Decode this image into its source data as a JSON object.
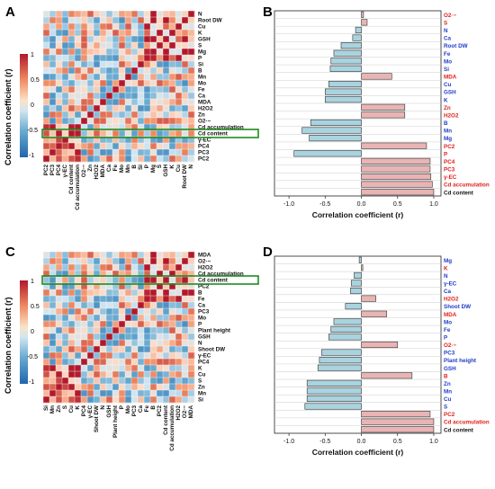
{
  "colors": {
    "pos": "#e8b4b4",
    "neg": "#a9d3df",
    "red_label": "#e0201b",
    "blue_label": "#1f3cc8",
    "black_label": "#111111",
    "highlight": "#1f8a1f"
  },
  "panels": {
    "A": {
      "letter": "A",
      "legend_title": "Correlation coefficient (r)",
      "legend_ticks": [
        "1",
        "0.5",
        "0",
        "-0.5",
        "-1"
      ]
    },
    "B": {
      "letter": "B"
    },
    "C": {
      "letter": "C",
      "legend_title": "Correlation coefficient (r)",
      "legend_ticks": [
        "1",
        "0.5",
        "0",
        "-0.5",
        "-1"
      ]
    },
    "D": {
      "letter": "D"
    }
  },
  "chart_data": [
    {
      "panel": "A",
      "type": "heatmap",
      "row_labels": [
        "N",
        "Root DW",
        "Cu",
        "K",
        "GSH",
        "S",
        "Mg",
        "P",
        "Si",
        "B",
        "Mn",
        "Mo",
        "Fe",
        "Ca",
        "MDA",
        "H2O2",
        "Zn",
        "O2·−",
        "Cd accumulation",
        "Cd content",
        "γ-EC",
        "PC4",
        "PC3",
        "PC2"
      ],
      "col_labels": [
        "PC2",
        "PC3",
        "PC4",
        "γ-EC",
        "Cd content",
        "Cd accumulation",
        "O2·−",
        "Zn",
        "H2O2",
        "MDA",
        "Ca",
        "Fe",
        "Mo",
        "Mn",
        "B",
        "Si",
        "P",
        "Mg",
        "S",
        "GSH",
        "K",
        "Cu",
        "Root DW",
        "N"
      ],
      "highlight_row": "Cd content",
      "colorbar": {
        "min": -1,
        "max": 1
      }
    },
    {
      "panel": "B",
      "type": "bar",
      "orientation": "horizontal",
      "categories": [
        "O2·−",
        "S",
        "N",
        "Ca",
        "Root DW",
        "Fe",
        "Mo",
        "Si",
        "MDA",
        "Cu",
        "GSH",
        "K",
        "Zn",
        "H2O2",
        "B",
        "Mn",
        "Mg",
        "PC2",
        "P",
        "PC4",
        "PC3",
        "γ-EC",
        "Cd accumulation",
        "Cd content"
      ],
      "values": [
        0.03,
        0.08,
        -0.08,
        -0.12,
        -0.28,
        -0.38,
        -0.42,
        -0.43,
        0.42,
        -0.45,
        -0.5,
        -0.5,
        0.6,
        0.6,
        -0.7,
        -0.82,
        -0.72,
        0.9,
        -0.93,
        0.95,
        0.95,
        0.96,
        0.98,
        1.0
      ],
      "label_colors": [
        "red",
        "red",
        "blue",
        "blue",
        "blue",
        "blue",
        "blue",
        "blue",
        "red",
        "blue",
        "blue",
        "blue",
        "red",
        "red",
        "blue",
        "blue",
        "blue",
        "red",
        "red",
        "red",
        "red",
        "red",
        "red",
        "black"
      ],
      "xlabel": "Correlation coefficient (r)",
      "xlim": [
        -1.2,
        1.1
      ],
      "xticks": [
        "-1.0",
        "-0.5",
        "0.0",
        "0.5",
        "1.0"
      ]
    },
    {
      "panel": "C",
      "type": "heatmap",
      "row_labels": [
        "MDA",
        "O2·−",
        "H2O2",
        "Cd accumulation",
        "Cd content",
        "PC2",
        "B",
        "Fe",
        "Ca",
        "PC3",
        "Mo",
        "P",
        "Plant height",
        "GSH",
        "N",
        "Shoot DW",
        "γ-EC",
        "PC4",
        "K",
        "Cu",
        "S",
        "Zn",
        "Mn",
        "Si"
      ],
      "col_labels": [
        "Si",
        "Mn",
        "Zn",
        "S",
        "Cu",
        "K",
        "PC4",
        "γ-EC",
        "Shoot DW",
        "N",
        "GSH",
        "Plant height",
        "P",
        "Mo",
        "PC3",
        "Ca",
        "Fe",
        "B",
        "PC2",
        "Cd content",
        "Cd accumulation",
        "H2O2",
        "O2·−",
        "MDA"
      ],
      "highlight_row": "Cd content",
      "colorbar": {
        "min": -1,
        "max": 1
      }
    },
    {
      "panel": "D",
      "type": "bar",
      "orientation": "horizontal",
      "categories": [
        "Mg",
        "K",
        "N",
        "γ-EC",
        "Ca",
        "H2O2",
        "Shoot DW",
        "MDA",
        "Mo",
        "Fe",
        "P",
        "O2·−",
        "PC3",
        "Plant height",
        "GSH",
        "B",
        "Zn",
        "Mn",
        "Cu",
        "S",
        "PC2",
        "Cd accumulation",
        "Cd content"
      ],
      "values": [
        -0.03,
        0.02,
        -0.1,
        -0.14,
        -0.15,
        0.2,
        -0.22,
        0.35,
        -0.38,
        -0.42,
        -0.45,
        0.5,
        -0.55,
        -0.58,
        -0.6,
        0.7,
        -0.75,
        -0.75,
        -0.75,
        -0.78,
        0.95,
        1.0,
        1.0
      ],
      "label_colors": [
        "blue",
        "red",
        "blue",
        "blue",
        "blue",
        "red",
        "blue",
        "red",
        "blue",
        "blue",
        "blue",
        "red",
        "blue",
        "blue",
        "blue",
        "red",
        "blue",
        "blue",
        "blue",
        "blue",
        "red",
        "red",
        "black"
      ],
      "xlabel": "Correlation coefficient (r)",
      "xlim": [
        -1.2,
        1.1
      ],
      "xticks": [
        "-1.0",
        "-0.5",
        "0.0",
        "0.5",
        "1.0"
      ]
    }
  ]
}
